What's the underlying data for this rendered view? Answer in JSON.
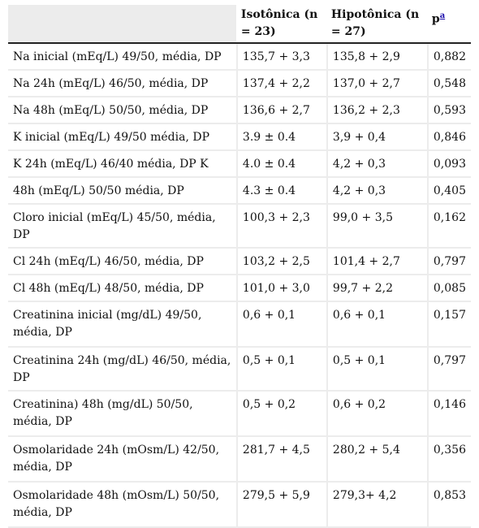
{
  "table": {
    "headers": {
      "col1": "",
      "col2": "Isotônica (n = 23)",
      "col3": "Hipotônica (n = 27)",
      "col4_main": "p",
      "col4_sup": "a"
    },
    "rows": [
      {
        "label": "Na inicial (mEq/L) 49/50, média, DP",
        "iso": "135,7 + 3,3",
        "hipo": "135,8 + 2,9",
        "p": "0,882"
      },
      {
        "label": "Na 24h (mEq/L) 46/50, média, DP",
        "iso": "137,4 + 2,2",
        "hipo": "137,0 + 2,7",
        "p": "0,548"
      },
      {
        "label": "Na 48h (mEq/L) 50/50, média, DP",
        "iso": "136,6 + 2,7",
        "hipo": "136,2 + 2,3",
        "p": "0,593"
      },
      {
        "label": "K inicial (mEq/L) 49/50 média, DP",
        "iso": "3.9 ± 0.4",
        "hipo": "3,9 + 0,4",
        "p": "0,846"
      },
      {
        "label": "K 24h (mEq/L) 46/40 média, DP K",
        "iso": "4.0 ± 0.4",
        "hipo": "4,2 + 0,3",
        "p": "0,093"
      },
      {
        "label": "48h (mEq/L) 50/50 média, DP",
        "iso": "4.3 ± 0.4",
        "hipo": "4,2 + 0,3",
        "p": "0,405"
      },
      {
        "label": "Cloro inicial (mEq/L) 45/50, média, DP",
        "iso": "100,3 + 2,3",
        "hipo": "99,0 + 3,5",
        "p": "0,162"
      },
      {
        "label": "Cl 24h (mEq/L) 46/50, média, DP",
        "iso": "103,2 + 2,5",
        "hipo": "101,4 + 2,7",
        "p": "0,797"
      },
      {
        "label": "Cl 48h (mEq/L) 48/50, média, DP",
        "iso": "101,0 + 3,0",
        "hipo": "99,7 + 2,2",
        "p": "0,085"
      },
      {
        "label": "Creatinina inicial (mg/dL) 49/50, média, DP",
        "iso": "0,6 + 0,1",
        "hipo": "0,6 + 0,1",
        "p": "0,157"
      },
      {
        "label": "Creatinina 24h (mg/dL) 46/50, média, DP",
        "iso": "0,5 + 0,1",
        "hipo": "0,5 + 0,1",
        "p": "0,797"
      },
      {
        "label": "Creatinina) 48h (mg/dL) 50/50, média, DP",
        "iso": "0,5 + 0,2",
        "hipo": "0,6 + 0,2",
        "p": "0,146"
      },
      {
        "label": "Osmolaridade 24h (mOsm/L) 42/50, média, DP",
        "iso": "281,7 + 4,5",
        "hipo": "280,2 + 5,4",
        "p": "0,356"
      },
      {
        "label": "Osmolaridade 48h (mOsm/L) 50/50, média, DP",
        "iso": "279,5 + 5,9",
        "hipo": "279,3+ 4,2",
        "p": "0,853"
      }
    ]
  }
}
